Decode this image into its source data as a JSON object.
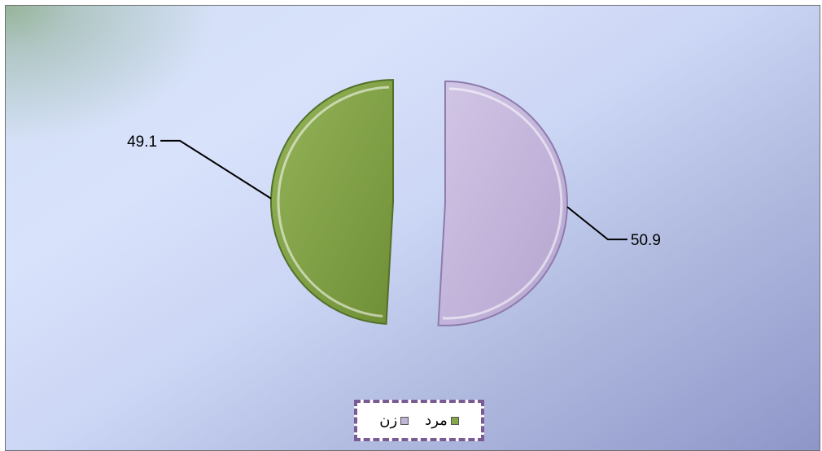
{
  "chart_data": {
    "type": "pie",
    "style": "3d exploded half-circles",
    "slices": [
      {
        "label": "زن",
        "value": 50.9,
        "color": "#c2b3d9"
      },
      {
        "label": "مرد",
        "value": 49.1,
        "color": "#86a64b"
      }
    ],
    "data_labels": [
      "50.9",
      "49.1"
    ],
    "legend": {
      "placement": "bottom",
      "entries": [
        {
          "label": "مرد",
          "color": "#86a64b"
        },
        {
          "label": "زن",
          "color": "#c2b3d9"
        }
      ]
    },
    "colors": {
      "frame_border": "#6f6f6f",
      "legend_border": "#7a5b93",
      "leader_line": "#000000"
    }
  }
}
